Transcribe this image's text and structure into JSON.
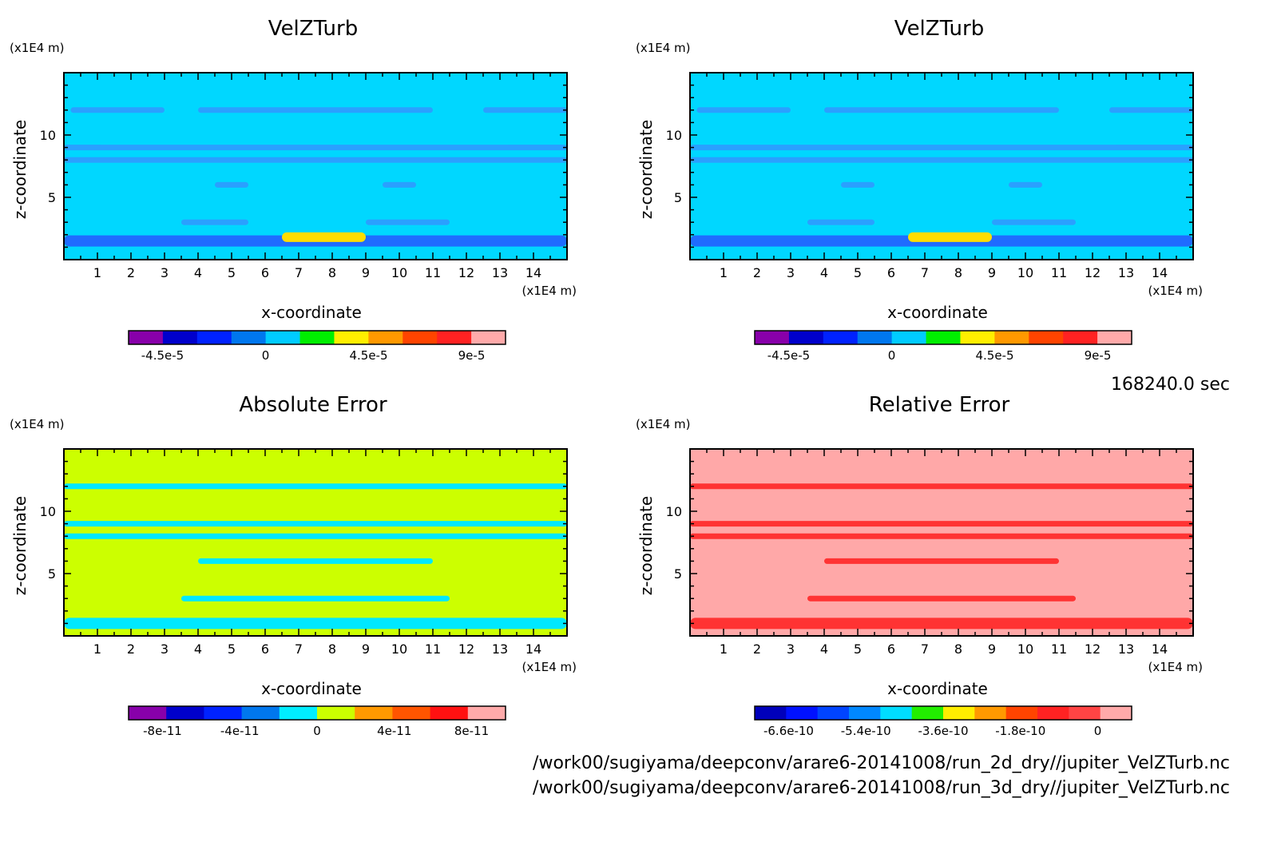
{
  "timestamp": "168240.0 sec",
  "file_paths": [
    "/work00/sugiyama/deepconv/arare6-20141008/run_2d_dry//jupiter_VelZTurb.nc",
    "/work00/sugiyama/deepconv/arare6-20141008/run_3d_dry//jupiter_VelZTurb.nc"
  ],
  "chart_data": [
    {
      "type": "heatmap",
      "title": "VelZTurb",
      "xlabel": "x-coordinate",
      "ylabel": "z-coordinate",
      "x_unit": "(x1E4 m)",
      "y_unit": "(x1E4 m)",
      "xlim": [
        0,
        15
      ],
      "ylim": [
        0,
        15
      ],
      "x_ticks": [
        "1",
        "2",
        "3",
        "4",
        "5",
        "6",
        "7",
        "8",
        "9",
        "10",
        "11",
        "12",
        "13",
        "14"
      ],
      "y_ticks": [
        "5",
        "10"
      ],
      "background_level": "0",
      "colorbar": {
        "colors": [
          "#8800aa",
          "#0000cc",
          "#0022ff",
          "#0077ee",
          "#00ccff",
          "#00ee00",
          "#ffee00",
          "#ff9900",
          "#ff4400",
          "#ff2222",
          "#ffaaaa"
        ],
        "labels": [
          "-4.5e-5",
          "0",
          "4.5e-5",
          "9e-5"
        ]
      },
      "features": [
        {
          "z": 12,
          "x": [
            4,
            11
          ],
          "level": -5e-06
        },
        {
          "z": 12,
          "x": [
            0.2,
            3
          ],
          "level": -5e-06
        },
        {
          "z": 12,
          "x": [
            12.5,
            15
          ],
          "level": -5e-06
        },
        {
          "z": 9,
          "x": [
            0,
            15
          ],
          "level": -5e-06
        },
        {
          "z": 8,
          "x": [
            0,
            15
          ],
          "level": -5e-06
        },
        {
          "z": 6,
          "x": [
            4.5,
            5.5
          ],
          "level": -5e-06
        },
        {
          "z": 6,
          "x": [
            9.5,
            10.5
          ],
          "level": -5e-06
        },
        {
          "z": 3,
          "x": [
            3.5,
            5.5
          ],
          "level": -5e-06
        },
        {
          "z": 3,
          "x": [
            9,
            11.5
          ],
          "level": -5e-06
        },
        {
          "z": 1.5,
          "x": [
            0,
            15
          ],
          "level": -1.5e-05
        },
        {
          "z": 1.8,
          "x": [
            6.5,
            9
          ],
          "level": 6e-05
        }
      ]
    },
    {
      "type": "heatmap",
      "title": "VelZTurb",
      "xlabel": "x-coordinate",
      "ylabel": "z-coordinate",
      "x_unit": "(x1E4 m)",
      "y_unit": "(x1E4 m)",
      "xlim": [
        0,
        15
      ],
      "ylim": [
        0,
        15
      ],
      "x_ticks": [
        "1",
        "2",
        "3",
        "4",
        "5",
        "6",
        "7",
        "8",
        "9",
        "10",
        "11",
        "12",
        "13",
        "14"
      ],
      "y_ticks": [
        "5",
        "10"
      ],
      "background_level": "0",
      "colorbar": {
        "colors": [
          "#8800aa",
          "#0000cc",
          "#0022ff",
          "#0077ee",
          "#00ccff",
          "#00ee00",
          "#ffee00",
          "#ff9900",
          "#ff4400",
          "#ff2222",
          "#ffaaaa"
        ],
        "labels": [
          "-4.5e-5",
          "0",
          "4.5e-5",
          "9e-5"
        ]
      },
      "features": [
        {
          "z": 12,
          "x": [
            4,
            11
          ],
          "level": -5e-06
        },
        {
          "z": 12,
          "x": [
            0.2,
            3
          ],
          "level": -5e-06
        },
        {
          "z": 12,
          "x": [
            12.5,
            15
          ],
          "level": -5e-06
        },
        {
          "z": 9,
          "x": [
            0,
            15
          ],
          "level": -5e-06
        },
        {
          "z": 8,
          "x": [
            0,
            15
          ],
          "level": -5e-06
        },
        {
          "z": 6,
          "x": [
            4.5,
            5.5
          ],
          "level": -5e-06
        },
        {
          "z": 6,
          "x": [
            9.5,
            10.5
          ],
          "level": -5e-06
        },
        {
          "z": 3,
          "x": [
            3.5,
            5.5
          ],
          "level": -5e-06
        },
        {
          "z": 3,
          "x": [
            9,
            11.5
          ],
          "level": -5e-06
        },
        {
          "z": 1.5,
          "x": [
            0,
            15
          ],
          "level": -1.5e-05
        },
        {
          "z": 1.8,
          "x": [
            6.5,
            9
          ],
          "level": 6e-05
        }
      ]
    },
    {
      "type": "heatmap",
      "title": "Absolute Error",
      "xlabel": "x-coordinate",
      "ylabel": "z-coordinate",
      "x_unit": "(x1E4 m)",
      "y_unit": "(x1E4 m)",
      "xlim": [
        0,
        15
      ],
      "ylim": [
        0,
        15
      ],
      "x_ticks": [
        "1",
        "2",
        "3",
        "4",
        "5",
        "6",
        "7",
        "8",
        "9",
        "10",
        "11",
        "12",
        "13",
        "14"
      ],
      "y_ticks": [
        "5",
        "10"
      ],
      "background_level": "0",
      "colorbar": {
        "colors": [
          "#8800aa",
          "#0000cc",
          "#0022ff",
          "#0077ee",
          "#00eeff",
          "#ccff00",
          "#ff9900",
          "#ff5500",
          "#ff1111",
          "#ffaaaa"
        ],
        "labels": [
          "-8e-11",
          "-4e-11",
          "0",
          "4e-11",
          "8e-11"
        ]
      },
      "features": [
        {
          "z": 12,
          "x": [
            0,
            15
          ],
          "level": -1e-11
        },
        {
          "z": 9,
          "x": [
            0,
            15
          ],
          "level": -1e-11
        },
        {
          "z": 8,
          "x": [
            0,
            15
          ],
          "level": -1e-11
        },
        {
          "z": 6,
          "x": [
            4,
            11
          ],
          "level": -1e-11
        },
        {
          "z": 3,
          "x": [
            3.5,
            11.5
          ],
          "level": -1e-11
        },
        {
          "z": 1,
          "x": [
            0,
            15
          ],
          "level": -1e-11
        }
      ]
    },
    {
      "type": "heatmap",
      "title": "Relative Error",
      "xlabel": "x-coordinate",
      "ylabel": "z-coordinate",
      "x_unit": "(x1E4 m)",
      "y_unit": "(x1E4 m)",
      "xlim": [
        0,
        15
      ],
      "ylim": [
        0,
        15
      ],
      "x_ticks": [
        "1",
        "2",
        "3",
        "4",
        "5",
        "6",
        "7",
        "8",
        "9",
        "10",
        "11",
        "12",
        "13",
        "14"
      ],
      "y_ticks": [
        "5",
        "10"
      ],
      "background_level": "0",
      "colorbar": {
        "colors": [
          "#0000bb",
          "#0011ff",
          "#0044ff",
          "#0088ff",
          "#00ddff",
          "#22ee00",
          "#ffee00",
          "#ff9900",
          "#ff4400",
          "#ff2222",
          "#ff4444",
          "#ffaaaa"
        ],
        "labels": [
          "-6.6e-10",
          "-5.4e-10",
          "-3.6e-10",
          "-1.8e-10",
          "0"
        ]
      },
      "features": [
        {
          "z": 12,
          "x": [
            0,
            15
          ],
          "level": -1e-11
        },
        {
          "z": 9,
          "x": [
            0,
            15
          ],
          "level": -1e-11
        },
        {
          "z": 8,
          "x": [
            0,
            15
          ],
          "level": -1e-11
        },
        {
          "z": 6,
          "x": [
            4,
            11
          ],
          "level": -1e-11
        },
        {
          "z": 3,
          "x": [
            3.5,
            11.5
          ],
          "level": -1e-11
        },
        {
          "z": 1,
          "x": [
            0,
            15
          ],
          "level": -1e-11
        }
      ]
    }
  ]
}
